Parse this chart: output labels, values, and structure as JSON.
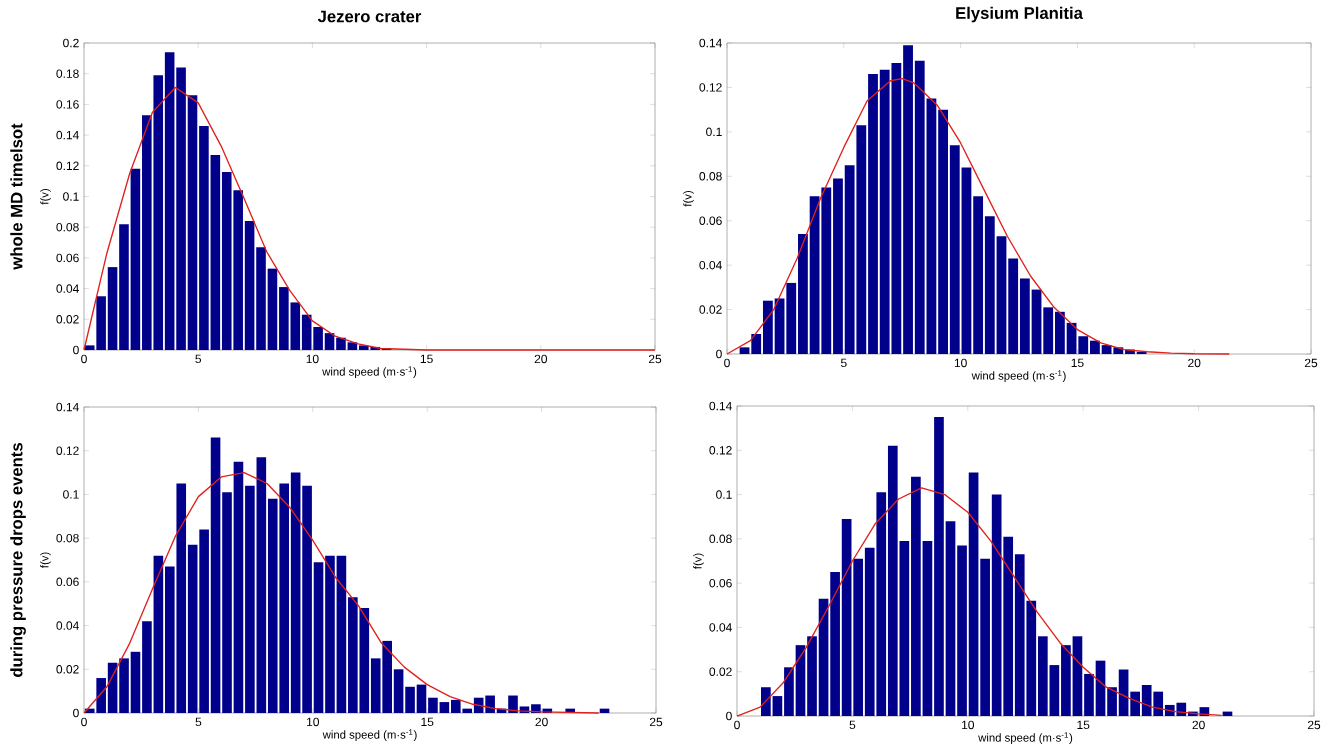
{
  "chart_data": [
    {
      "type": "histogram",
      "title": "Jezero crater",
      "xlabel": "wind speed (m·s$^{-1}$)",
      "ylabel": "f(v)",
      "annotations": [
        "whole MD timelsot"
      ],
      "xlim": [
        0,
        25
      ],
      "xticks": [
        0,
        5,
        10,
        15,
        20,
        25
      ],
      "ylim": [
        0,
        0.2
      ],
      "yticks": [
        0,
        0.02,
        0.04,
        0.06,
        0.08,
        0.1,
        0.12,
        0.14,
        0.16,
        0.18,
        0.2
      ],
      "series": [
        {
          "type": "histogram",
          "color": "#00008b",
          "bins": [
            0,
            0.5,
            1,
            1.5,
            2,
            2.5,
            3,
            3.5,
            4,
            4.5,
            5,
            5.5,
            6,
            6.5,
            7,
            7.5,
            8,
            8.5,
            9,
            9.5,
            10,
            10.5,
            11,
            11.5,
            12,
            12.5,
            13,
            13.5
          ],
          "values": [
            0.003,
            0.035,
            0.054,
            0.082,
            0.118,
            0.153,
            0.179,
            0.194,
            0.184,
            0.166,
            0.146,
            0.127,
            0.116,
            0.104,
            0.084,
            0.067,
            0.053,
            0.041,
            0.031,
            0.023,
            0.015,
            0.011,
            0.008,
            0.005,
            0.003,
            0.002,
            0.001
          ]
        },
        {
          "type": "line",
          "color": "#e0201b",
          "x": [
            0,
            1,
            2,
            3,
            4,
            5,
            6,
            7,
            8,
            9,
            10,
            11,
            12,
            13,
            14,
            15,
            25
          ],
          "values": [
            0,
            0.063,
            0.115,
            0.155,
            0.171,
            0.161,
            0.133,
            0.099,
            0.064,
            0.039,
            0.019,
            0.009,
            0.004,
            0.001,
            0.0005,
            0,
            0
          ]
        }
      ]
    },
    {
      "type": "histogram",
      "title": "Elysium Planitia",
      "xlabel": "wind speed (m·s$^{-1}$)",
      "ylabel": "f(v)",
      "xlim": [
        0,
        25
      ],
      "xticks": [
        0,
        5,
        10,
        15,
        20,
        25
      ],
      "ylim": [
        0,
        0.14
      ],
      "yticks": [
        0,
        0.02,
        0.04,
        0.06,
        0.08,
        0.1,
        0.12,
        0.14
      ],
      "series": [
        {
          "type": "histogram",
          "color": "#00008b",
          "bins": [
            0.5,
            1,
            1.5,
            2,
            2.5,
            3,
            3.5,
            4,
            4.5,
            5,
            5.5,
            6,
            6.5,
            7,
            7.5,
            8,
            8.5,
            9,
            9.5,
            10,
            10.5,
            11,
            11.5,
            12,
            12.5,
            13,
            13.5,
            14,
            14.5,
            15,
            15.5,
            16,
            16.5,
            17,
            17.5,
            18,
            18.5
          ],
          "values": [
            0.003,
            0.009,
            0.024,
            0.025,
            0.032,
            0.054,
            0.071,
            0.075,
            0.079,
            0.085,
            0.103,
            0.126,
            0.128,
            0.131,
            0.139,
            0.132,
            0.115,
            0.11,
            0.094,
            0.084,
            0.071,
            0.062,
            0.053,
            0.043,
            0.034,
            0.029,
            0.021,
            0.019,
            0.014,
            0.008,
            0.006,
            0.004,
            0.003,
            0.002,
            0.001,
            null
          ]
        },
        {
          "type": "line",
          "color": "#e0201b",
          "x": [
            0,
            1,
            2,
            3,
            4,
            5,
            6,
            7,
            7.5,
            8,
            9,
            10,
            11,
            12,
            13,
            14,
            15,
            16,
            17,
            18,
            19,
            20,
            21.5
          ],
          "values": [
            0,
            0.006,
            0.02,
            0.043,
            0.07,
            0.093,
            0.114,
            0.123,
            0.124,
            0.122,
            0.112,
            0.095,
            0.074,
            0.053,
            0.035,
            0.021,
            0.011,
            0.005,
            0.002,
            0.001,
            0.0004,
            0.0001,
            0
          ]
        }
      ]
    },
    {
      "type": "histogram",
      "xlabel": "wind speed (m·s$^{-1}$)",
      "ylabel": "f(v)",
      "annotations": [
        "during pressure drops events"
      ],
      "xlim": [
        0,
        25
      ],
      "xticks": [
        0,
        5,
        10,
        15,
        20,
        25
      ],
      "ylim": [
        0,
        0.14
      ],
      "yticks": [
        0,
        0.02,
        0.04,
        0.06,
        0.08,
        0.1,
        0.12,
        0.14
      ],
      "series": [
        {
          "type": "histogram",
          "color": "#00008b",
          "bins": [
            0,
            0.5,
            1,
            1.5,
            2,
            2.5,
            3,
            3.5,
            4,
            4.5,
            5,
            5.5,
            6,
            6.5,
            7,
            7.5,
            8,
            8.5,
            9,
            9.5,
            10,
            10.5,
            11,
            11.5,
            12,
            12.5,
            13,
            13.5,
            14,
            14.5,
            15,
            15.5,
            16,
            16.5,
            17,
            17.5,
            18,
            18.5,
            19,
            19.5,
            20,
            20.5,
            21,
            21.5,
            22,
            22.5,
            23
          ],
          "values": [
            0.002,
            0.016,
            0.023,
            0.025,
            0.028,
            0.042,
            0.072,
            0.067,
            0.105,
            0.077,
            0.084,
            0.126,
            0.101,
            0.115,
            0.104,
            0.117,
            0.098,
            0.105,
            0.11,
            0.104,
            0.069,
            0.072,
            0.072,
            0.053,
            0.048,
            0.025,
            0.033,
            0.02,
            0.012,
            0.013,
            0.007,
            0.005,
            0.006,
            0.002,
            0.007,
            0.008,
            0.002,
            0.008,
            0.003,
            0.004,
            0.002,
            null,
            0.002,
            0,
            0,
            0.002
          ]
        },
        {
          "type": "line",
          "color": "#e0201b",
          "x": [
            0,
            1,
            2,
            3,
            4,
            5,
            6,
            7,
            8,
            9,
            10,
            11,
            12,
            13,
            14,
            15,
            16,
            17,
            18,
            19,
            20,
            22.5
          ],
          "values": [
            0,
            0.012,
            0.032,
            0.057,
            0.081,
            0.099,
            0.108,
            0.11,
            0.105,
            0.094,
            0.079,
            0.062,
            0.049,
            0.032,
            0.021,
            0.013,
            0.0075,
            0.004,
            0.002,
            0.001,
            0.0005,
            0
          ]
        }
      ]
    },
    {
      "type": "histogram",
      "xlabel": "wind speed (m·s$^{-1}$)",
      "ylabel": "f(v)",
      "xlim": [
        0,
        25
      ],
      "xticks": [
        0,
        5,
        10,
        15,
        20,
        25
      ],
      "ylim": [
        0,
        0.14
      ],
      "yticks": [
        0,
        0.02,
        0.04,
        0.06,
        0.08,
        0.1,
        0.12,
        0.14
      ],
      "series": [
        {
          "type": "histogram",
          "color": "#00008b",
          "bins": [
            1,
            1.5,
            2,
            2.5,
            3,
            3.5,
            4,
            4.5,
            5,
            5.5,
            6,
            6.5,
            7,
            7.5,
            8,
            8.5,
            9,
            9.5,
            10,
            10.5,
            11,
            11.5,
            12,
            12.5,
            13,
            13.5,
            14,
            14.5,
            15,
            15.5,
            16,
            16.5,
            17,
            17.5,
            18,
            18.5,
            19,
            19.5,
            20,
            20.5,
            21,
            21.5
          ],
          "values": [
            0.013,
            0.009,
            0.022,
            0.032,
            0.036,
            0.053,
            0.065,
            0.089,
            0.071,
            0.076,
            0.101,
            0.122,
            0.079,
            0.108,
            0.079,
            0.135,
            0.088,
            0.077,
            0.11,
            0.071,
            0.1,
            0.081,
            0.073,
            0.052,
            0.036,
            0.023,
            0.032,
            0.036,
            0.019,
            0.025,
            0.013,
            0.021,
            0.011,
            0.014,
            0.011,
            0.005,
            0.006,
            0.002,
            0.004,
            0,
            0.002
          ]
        },
        {
          "type": "line",
          "color": "#e0201b",
          "x": [
            0,
            1,
            2,
            3,
            4,
            5,
            6,
            7,
            8,
            9,
            10,
            11,
            12,
            13,
            14,
            15,
            16,
            17,
            18,
            19,
            20,
            21
          ],
          "values": [
            0,
            0.004,
            0.015,
            0.031,
            0.05,
            0.07,
            0.087,
            0.098,
            0.103,
            0.1,
            0.092,
            0.079,
            0.063,
            0.047,
            0.033,
            0.022,
            0.013,
            0.008,
            0.004,
            0.002,
            0.001,
            0.0003
          ]
        }
      ]
    }
  ]
}
